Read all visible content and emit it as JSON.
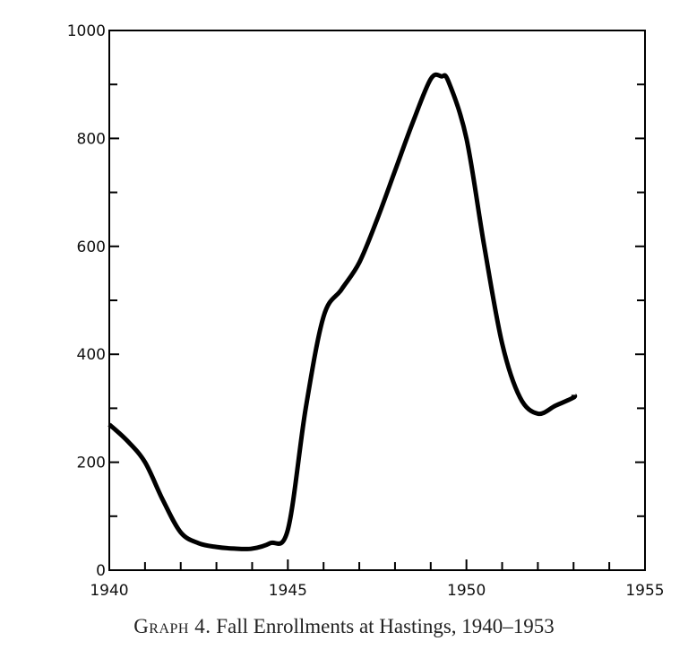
{
  "chart_data": {
    "type": "line",
    "title": "",
    "xlabel": "",
    "ylabel": "",
    "xlim": [
      1940,
      1955
    ],
    "ylim": [
      0,
      1000
    ],
    "x_ticks": [
      1940,
      1945,
      1950,
      1955
    ],
    "y_ticks": [
      0,
      200,
      400,
      600,
      800,
      1000
    ],
    "grid": false,
    "series": [
      {
        "x": [
          1940,
          1940.5,
          1941,
          1941.5,
          1942,
          1942.5,
          1943,
          1943.5,
          1944,
          1944.5,
          1945,
          1945.5,
          1946,
          1946.5,
          1947,
          1947.5,
          1948,
          1948.5,
          1949,
          1949.3,
          1949.5,
          1950,
          1950.5,
          1951,
          1951.5,
          1952,
          1952.5,
          1953,
          1953
        ],
        "y": [
          270,
          240,
          200,
          130,
          70,
          50,
          43,
          40,
          40,
          50,
          75,
          300,
          470,
          520,
          570,
          650,
          740,
          830,
          910,
          915,
          905,
          800,
          600,
          420,
          320,
          290,
          305,
          320,
          325
        ],
        "color": "#000000"
      }
    ]
  },
  "caption": {
    "lead": "Graph 4.",
    "text": "Fall Enrollments at Hastings, 1940–1953"
  }
}
